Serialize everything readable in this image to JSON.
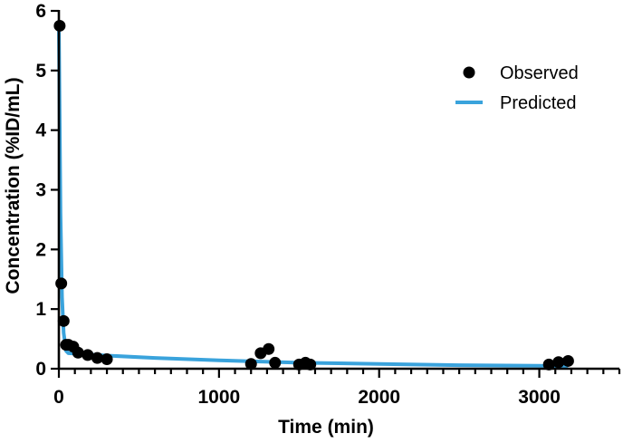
{
  "chart_data": {
    "type": "scatter",
    "title": "",
    "xlabel": "Time (min)",
    "ylabel": "Concentration (%ID/mL)",
    "xlim": [
      0,
      3500
    ],
    "ylim": [
      0,
      6
    ],
    "x_ticks": [
      0,
      1000,
      2000,
      3000
    ],
    "x_minor_step": 100,
    "y_ticks": [
      0,
      1,
      2,
      3,
      4,
      5,
      6
    ],
    "legend_position": "top-right",
    "series": [
      {
        "name": "Observed",
        "kind": "scatter",
        "color": "#000000",
        "points": [
          [
            5,
            5.75
          ],
          [
            15,
            1.43
          ],
          [
            30,
            0.8
          ],
          [
            45,
            0.4
          ],
          [
            60,
            0.4
          ],
          [
            90,
            0.37
          ],
          [
            120,
            0.27
          ],
          [
            180,
            0.23
          ],
          [
            240,
            0.18
          ],
          [
            300,
            0.16
          ],
          [
            1200,
            0.08
          ],
          [
            1260,
            0.26
          ],
          [
            1310,
            0.33
          ],
          [
            1350,
            0.1
          ],
          [
            1500,
            0.07
          ],
          [
            1540,
            0.1
          ],
          [
            1570,
            0.07
          ],
          [
            3060,
            0.07
          ],
          [
            3120,
            0.11
          ],
          [
            3180,
            0.13
          ]
        ]
      },
      {
        "name": "Predicted",
        "kind": "line",
        "color": "#3aa3dc",
        "points": [
          [
            0,
            5.75
          ],
          [
            10,
            2.6
          ],
          [
            20,
            1.2
          ],
          [
            30,
            0.6
          ],
          [
            45,
            0.3
          ],
          [
            60,
            0.26
          ],
          [
            120,
            0.25
          ],
          [
            300,
            0.22
          ],
          [
            600,
            0.18
          ],
          [
            1000,
            0.14
          ],
          [
            1500,
            0.1
          ],
          [
            2000,
            0.08
          ],
          [
            2500,
            0.06
          ],
          [
            3000,
            0.05
          ],
          [
            3180,
            0.04
          ]
        ]
      }
    ]
  }
}
